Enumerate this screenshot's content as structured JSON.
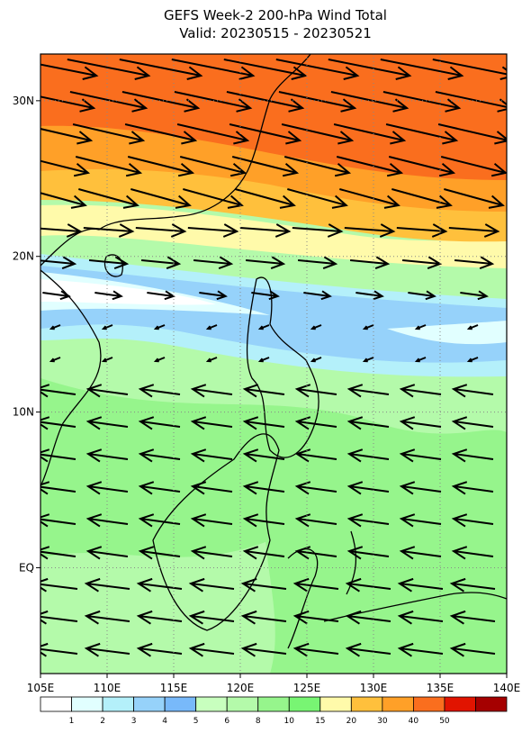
{
  "header": {
    "title": "GEFS Week-2 200-hPa Wind Total",
    "subtitle": "Valid: 20230515 - 20230521"
  },
  "map": {
    "xlim": [
      105,
      140
    ],
    "ylim": [
      -6.8,
      33
    ],
    "xticks": [
      {
        "value": 105,
        "label": "105E"
      },
      {
        "value": 110,
        "label": "110E"
      },
      {
        "value": 115,
        "label": "115E"
      },
      {
        "value": 120,
        "label": "120E"
      },
      {
        "value": 125,
        "label": "125E"
      },
      {
        "value": 130,
        "label": "130E"
      },
      {
        "value": 135,
        "label": "135E"
      },
      {
        "value": 140,
        "label": "140E"
      }
    ],
    "yticks": [
      {
        "value": 30,
        "label": "30N"
      },
      {
        "value": 20,
        "label": "20N"
      },
      {
        "value": 10,
        "label": "10N"
      },
      {
        "value": 0,
        "label": "EQ"
      }
    ]
  },
  "colorbar": {
    "levels": [
      1,
      2,
      3,
      4,
      5,
      6,
      8,
      10,
      15,
      20,
      30,
      40,
      50
    ],
    "colors": [
      "#ffffff",
      "#e1ffff",
      "#b4f0fa",
      "#96d2fa",
      "#78b9fa",
      "#c8ffbe",
      "#b4faaa",
      "#96f58c",
      "#78f573",
      "#fffaaa",
      "#ffc03c",
      "#ffa028",
      "#fa6e1e",
      "#e11400",
      "#a50000"
    ]
  }
}
